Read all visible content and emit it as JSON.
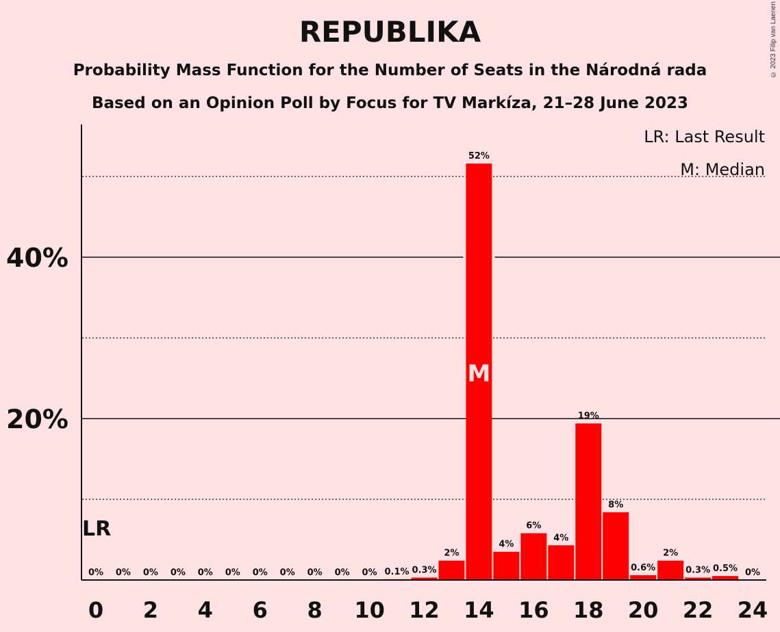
{
  "header": {
    "title": "REPUBLIKA",
    "subtitle1": "Probability Mass Function for the Number of Seats in the Národná rada",
    "subtitle2": "Based on an Opinion Poll by Focus for TV Markíza, 21–28 June 2023",
    "copyright": "© 2023 Filip van Laenen"
  },
  "legend": {
    "lr": "LR: Last Result",
    "m": "M: Median"
  },
  "chart_data": {
    "type": "bar",
    "x": [
      0,
      1,
      2,
      3,
      4,
      5,
      6,
      7,
      8,
      9,
      10,
      11,
      12,
      13,
      14,
      15,
      16,
      17,
      18,
      19,
      20,
      21,
      22,
      23,
      24
    ],
    "values": [
      0,
      0,
      0,
      0,
      0,
      0,
      0,
      0,
      0,
      0,
      0,
      0.1,
      0.3,
      2.4,
      51.6,
      3.5,
      5.8,
      4.3,
      19.4,
      8.4,
      0.6,
      2.4,
      0.3,
      0.5,
      0
    ],
    "data_labels": [
      "0%",
      "0%",
      "0%",
      "0%",
      "0%",
      "0%",
      "0%",
      "0%",
      "0%",
      "0%",
      "0%",
      "0.1%",
      "0.3%",
      "2%",
      "52%",
      "4%",
      "6%",
      "4%",
      "19%",
      "8%",
      "0.6%",
      "2%",
      "0.3%",
      "0.5%",
      "0%"
    ],
    "x_ticks": [
      0,
      2,
      4,
      6,
      8,
      10,
      12,
      14,
      16,
      18,
      20,
      22,
      24
    ],
    "y_tick_labels": [
      {
        "value": 20,
        "label": "20%"
      },
      {
        "value": 40,
        "label": "40%"
      }
    ],
    "y_gridlines_dotted": [
      10,
      30,
      50
    ],
    "ylim": [
      0,
      56
    ],
    "bar_color": "#FF0000",
    "last_result": {
      "x": 0,
      "label": "LR"
    },
    "median": {
      "x": 14,
      "label": "M"
    }
  }
}
